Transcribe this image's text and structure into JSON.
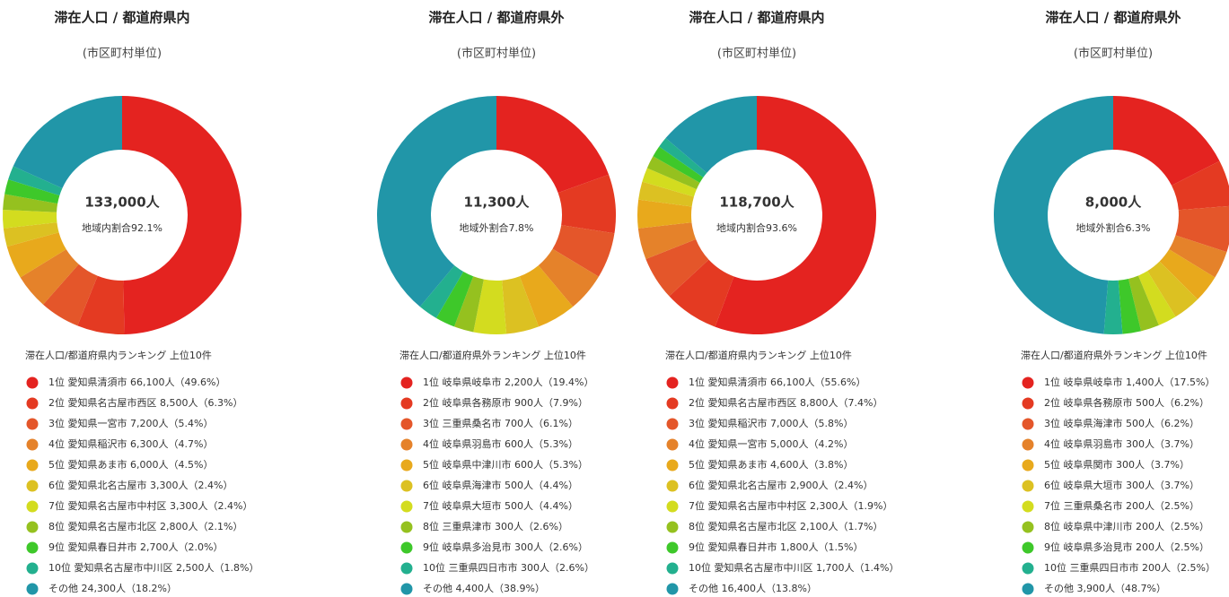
{
  "chart_data": [
    {
      "type": "donut",
      "title": "滞在人口 / 都道府県内",
      "subtitle": "(市区町村単位)",
      "total_label": "133,000人",
      "share_label": "地域内割合92.1%",
      "ranking_title": "滞在人口/都道府県内ランキング 上位10件",
      "categories": [
        "1位 愛知県清須市",
        "2位 愛知県名古屋市西区",
        "3位 愛知県一宮市",
        "4位 愛知県稲沢市",
        "5位 愛知県あま市",
        "6位 愛知県北名古屋市",
        "7位 愛知県名古屋市中村区",
        "8位 愛知県名古屋市北区",
        "9位 愛知県春日井市",
        "10位 愛知県名古屋市中川区",
        "その他"
      ],
      "values": [
        66100,
        8500,
        7200,
        6300,
        6000,
        3300,
        3300,
        2800,
        2700,
        2500,
        24300
      ],
      "value_labels": [
        "66,100人",
        "8,500人",
        "7,200人",
        "6,300人",
        "6,000人",
        "3,300人",
        "3,300人",
        "2,800人",
        "2,700人",
        "2,500人",
        "24,300人"
      ],
      "percent_labels": [
        "（49.6%）",
        "（6.3%）",
        "（5.4%）",
        "（4.7%）",
        "（4.5%）",
        "（2.4%）",
        "（2.4%）",
        "（2.1%）",
        "（2.0%）",
        "（1.8%）",
        "（18.2%）"
      ],
      "colors": [
        "#e42320",
        "#e43a22",
        "#e4562a",
        "#e5822a",
        "#e8a91c",
        "#dcc122",
        "#d3dc1f",
        "#95c11f",
        "#3ec82a",
        "#23b08f",
        "#2196a8"
      ]
    },
    {
      "type": "donut",
      "title": "滞在人口 / 都道府県外",
      "subtitle": "(市区町村単位)",
      "total_label": "11,300人",
      "share_label": "地域外割合7.8%",
      "ranking_title": "滞在人口/都道府県外ランキング 上位10件",
      "categories": [
        "1位 岐阜県岐阜市",
        "2位 岐阜県各務原市",
        "3位 三重県桑名市",
        "4位 岐阜県羽島市",
        "5位 岐阜県中津川市",
        "6位 岐阜県海津市",
        "7位 岐阜県大垣市",
        "8位 三重県津市",
        "9位 岐阜県多治見市",
        "10位 三重県四日市市",
        "その他"
      ],
      "values": [
        2200,
        900,
        700,
        600,
        600,
        500,
        500,
        300,
        300,
        300,
        4400
      ],
      "value_labels": [
        "2,200人",
        "900人",
        "700人",
        "600人",
        "600人",
        "500人",
        "500人",
        "300人",
        "300人",
        "300人",
        "4,400人"
      ],
      "percent_labels": [
        "（19.4%）",
        "（7.9%）",
        "（6.1%）",
        "（5.3%）",
        "（5.3%）",
        "（4.4%）",
        "（4.4%）",
        "（2.6%）",
        "（2.6%）",
        "（2.6%）",
        "（38.9%）"
      ],
      "colors": [
        "#e42320",
        "#e43a22",
        "#e4562a",
        "#e5822a",
        "#e8a91c",
        "#dcc122",
        "#d3dc1f",
        "#95c11f",
        "#3ec82a",
        "#23b08f",
        "#2196a8"
      ]
    },
    {
      "type": "donut",
      "title": "滞在人口 / 都道府県内",
      "subtitle": "(市区町村単位)",
      "total_label": "118,700人",
      "share_label": "地域内割合93.6%",
      "ranking_title": "滞在人口/都道府県内ランキング 上位10件",
      "categories": [
        "1位 愛知県清須市",
        "2位 愛知県名古屋市西区",
        "3位 愛知県稲沢市",
        "4位 愛知県一宮市",
        "5位 愛知県あま市",
        "6位 愛知県北名古屋市",
        "7位 愛知県名古屋市中村区",
        "8位 愛知県名古屋市北区",
        "9位 愛知県春日井市",
        "10位 愛知県名古屋市中川区",
        "その他"
      ],
      "values": [
        66100,
        8800,
        7000,
        5000,
        4600,
        2900,
        2300,
        2100,
        1800,
        1700,
        16400
      ],
      "value_labels": [
        "66,100人",
        "8,800人",
        "7,000人",
        "5,000人",
        "4,600人",
        "2,900人",
        "2,300人",
        "2,100人",
        "1,800人",
        "1,700人",
        "16,400人"
      ],
      "percent_labels": [
        "（55.6%）",
        "（7.4%）",
        "（5.8%）",
        "（4.2%）",
        "（3.8%）",
        "（2.4%）",
        "（1.9%）",
        "（1.7%）",
        "（1.5%）",
        "（1.4%）",
        "（13.8%）"
      ],
      "colors": [
        "#e42320",
        "#e43a22",
        "#e4562a",
        "#e5822a",
        "#e8a91c",
        "#dcc122",
        "#d3dc1f",
        "#95c11f",
        "#3ec82a",
        "#23b08f",
        "#2196a8"
      ]
    },
    {
      "type": "donut",
      "title": "滞在人口 / 都道府県外",
      "subtitle": "(市区町村単位)",
      "total_label": "8,000人",
      "share_label": "地域外割合6.3%",
      "ranking_title": "滞在人口/都道府県外ランキング 上位10件",
      "categories": [
        "1位 岐阜県岐阜市",
        "2位 岐阜県各務原市",
        "3位 岐阜県海津市",
        "4位 岐阜県羽島市",
        "5位 岐阜県関市",
        "6位 岐阜県大垣市",
        "7位 三重県桑名市",
        "8位 岐阜県中津川市",
        "9位 岐阜県多治見市",
        "10位 三重県四日市市",
        "その他"
      ],
      "values": [
        1400,
        500,
        500,
        300,
        300,
        300,
        200,
        200,
        200,
        200,
        3900
      ],
      "value_labels": [
        "1,400人",
        "500人",
        "500人",
        "300人",
        "300人",
        "300人",
        "200人",
        "200人",
        "200人",
        "200人",
        "3,900人"
      ],
      "percent_labels": [
        "（17.5%）",
        "（6.2%）",
        "（6.2%）",
        "（3.7%）",
        "（3.7%）",
        "（3.7%）",
        "（2.5%）",
        "（2.5%）",
        "（2.5%）",
        "（2.5%）",
        "（48.7%）"
      ],
      "colors": [
        "#e42320",
        "#e43a22",
        "#e4562a",
        "#e5822a",
        "#e8a91c",
        "#dcc122",
        "#d3dc1f",
        "#95c11f",
        "#3ec82a",
        "#23b08f",
        "#2196a8"
      ]
    }
  ]
}
